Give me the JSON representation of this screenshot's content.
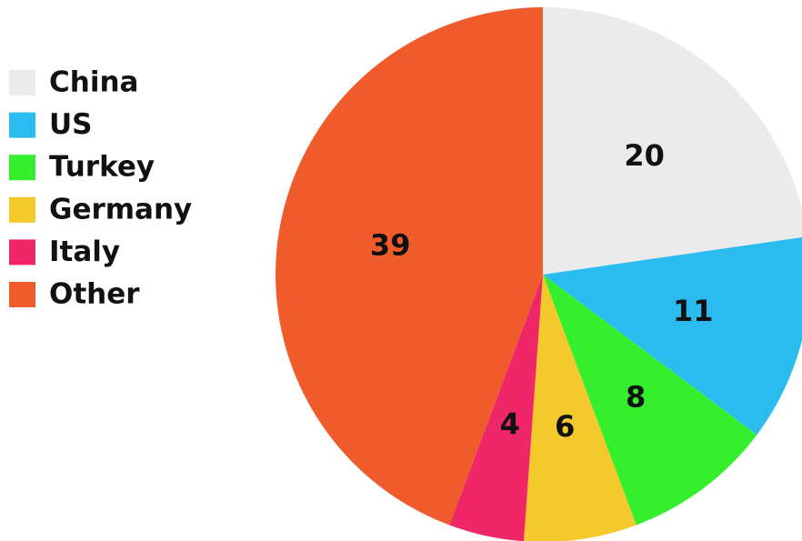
{
  "chart_data": {
    "type": "pie",
    "categories": [
      "China",
      "US",
      "Turkey",
      "Germany",
      "Italy",
      "Other"
    ],
    "values": [
      20,
      11,
      8,
      6,
      4,
      39
    ],
    "colors": [
      "#ebebeb",
      "#2bbcef",
      "#35ef2e",
      "#f4c92b",
      "#ef2768",
      "#f05b2b"
    ],
    "legend": "left"
  }
}
